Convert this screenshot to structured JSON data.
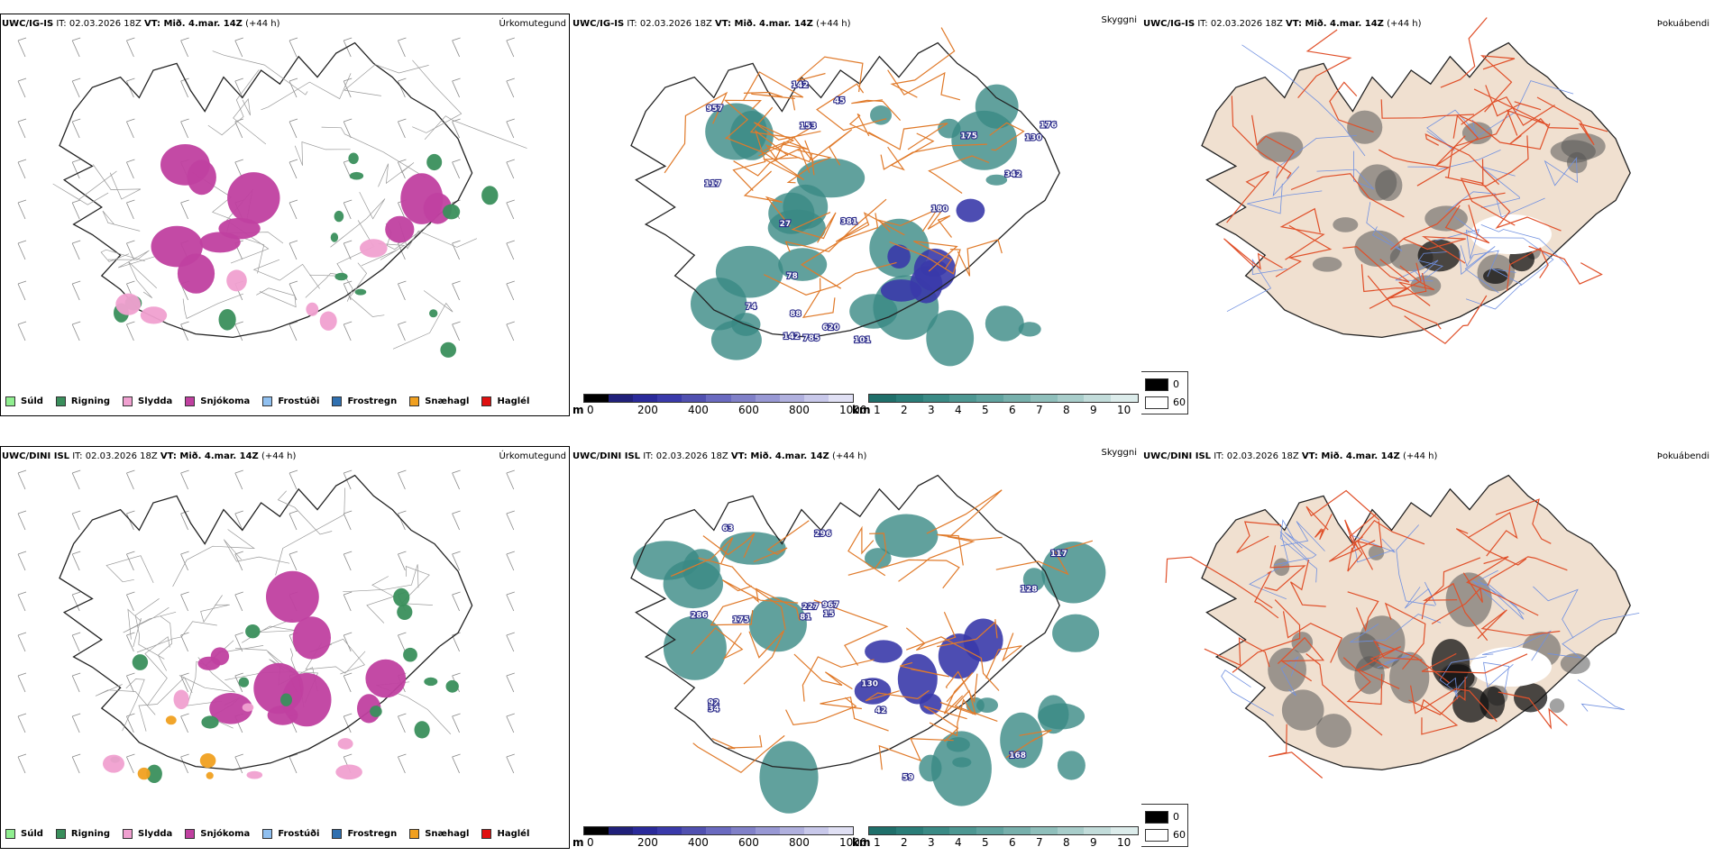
{
  "rows": [
    {
      "model": "UWC/IG-IS",
      "it_label": "IT:",
      "it_value": "02.03.2026 18Z",
      "vt_label": "VT:",
      "vt_value": "Mið. 4.mar. 14Z",
      "lead": "(+44 h)",
      "panel_labels": [
        "Úrkomutegund",
        "Skyggni",
        "Þokuábendi"
      ]
    },
    {
      "model": "UWC/DINI ISL",
      "it_label": "IT:",
      "it_value": "02.03.2026 18Z",
      "vt_label": "VT:",
      "vt_value": "Mið. 4.mar. 14Z",
      "lead": "(+44 h)",
      "panel_labels": [
        "Úrkomutegund",
        "Skyggni",
        "Þokuábendi"
      ]
    }
  ],
  "precip_legend": [
    {
      "label": "Súld",
      "color": "#90ee90"
    },
    {
      "label": "Rigning",
      "color": "#3a8f5c"
    },
    {
      "label": "Slydda",
      "color": "#f0a0d0"
    },
    {
      "label": "Snjókoma",
      "color": "#c040a0"
    },
    {
      "label": "Frostúði",
      "color": "#90c0f0"
    },
    {
      "label": "Frostregn",
      "color": "#3070b0"
    },
    {
      "label": "Snæhagl",
      "color": "#f0a020"
    },
    {
      "label": "Haglél",
      "color": "#e01010"
    }
  ],
  "ceiling_bar": {
    "unit": "m",
    "ticks": [
      "0",
      "200",
      "400",
      "600",
      "800",
      "1000"
    ],
    "colors": [
      "#000000",
      "#20207a",
      "#2a2a9a",
      "#3a3aaa",
      "#5050b0",
      "#6a6ac0",
      "#8080c8",
      "#9898d4",
      "#b0b0de",
      "#c8c8ea",
      "#e0e0f4"
    ]
  },
  "visibility_bar": {
    "unit": "km",
    "ticks": [
      "1",
      "2",
      "3",
      "4",
      "5",
      "6",
      "7",
      "8",
      "9",
      "10"
    ],
    "colors": [
      "#1f6f6a",
      "#2a7d78",
      "#3a8a85",
      "#4d9792",
      "#60a39f",
      "#77b0ac",
      "#8fbfbb",
      "#a8cdca",
      "#c2dcda",
      "#dceceb"
    ]
  },
  "fog_legend": [
    {
      "label": "0",
      "color": "#000000"
    },
    {
      "label": "60",
      "color": "#ffffff"
    }
  ],
  "ceiling_labels_top": [
    "78",
    "142",
    "175",
    "957",
    "130",
    "74",
    "180",
    "620",
    "142",
    "153",
    "117",
    "45",
    "381",
    "785",
    "342",
    "88",
    "101",
    "176",
    "27"
  ],
  "ceiling_labels_bottom": [
    "42",
    "168",
    "296",
    "63",
    "92",
    "175",
    "117",
    "81",
    "15",
    "227",
    "128",
    "967",
    "59",
    "34",
    "130",
    "286"
  ],
  "colors": {
    "coast": "#222222",
    "roads": "#e07a2a",
    "land_fog": "#f0e0d0",
    "fog_roads": "#e0502a",
    "rivers": "#7090e0",
    "snow": "#c040a0",
    "rain": "#3a8f5c",
    "sleet": "#f0a0d0",
    "ice": "#f0a020"
  }
}
